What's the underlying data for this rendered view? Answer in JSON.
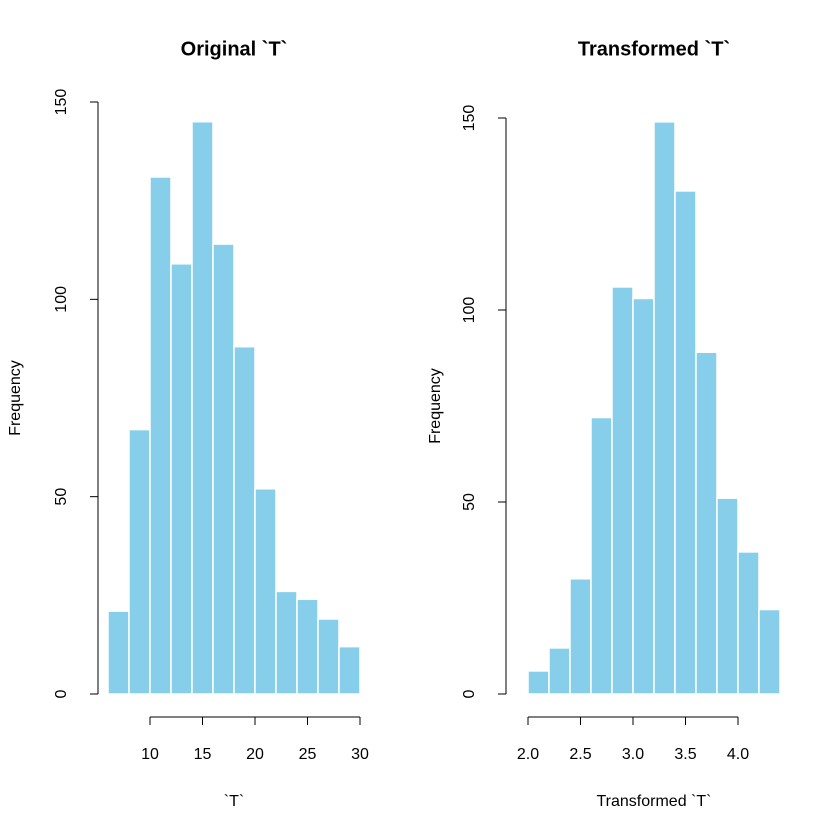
{
  "chart_data": [
    {
      "type": "histogram",
      "title": "Original `T`",
      "xlabel": "`T`",
      "ylabel": "Frequency",
      "bins": [
        6,
        8,
        10,
        12,
        14,
        16,
        18,
        20,
        22,
        24,
        26,
        28,
        30
      ],
      "values": [
        21,
        67,
        131,
        109,
        145,
        114,
        88,
        52,
        26,
        24,
        19,
        12
      ],
      "color": "#87ceeb",
      "xlim": [
        6,
        30
      ],
      "ylim": [
        0,
        150
      ],
      "xticks": [
        10,
        15,
        20,
        25,
        30
      ],
      "yticks": [
        0,
        50,
        100,
        150
      ]
    },
    {
      "type": "histogram",
      "title": "Transformed `T`",
      "xlabel": "Transformed `T`",
      "ylabel": "Frequency",
      "bins": [
        2.0,
        2.2,
        2.4,
        2.6,
        2.8,
        3.0,
        3.2,
        3.4,
        3.6,
        3.8,
        4.0,
        4.2,
        4.4
      ],
      "values": [
        6,
        12,
        30,
        72,
        106,
        103,
        149,
        131,
        89,
        51,
        37,
        22
      ],
      "color": "#87ceeb",
      "xlim": [
        2.0,
        4.4
      ],
      "ylim": [
        0,
        150
      ],
      "xticks": [
        {
          "value": 2.0,
          "label": "2.0"
        },
        {
          "value": 2.5,
          "label": "2.5"
        },
        {
          "value": 3.0,
          "label": "3.0"
        },
        {
          "value": 3.5,
          "label": "3.5"
        },
        {
          "value": 4.0,
          "label": "4.0"
        }
      ],
      "yticks": [
        0,
        50,
        100,
        150
      ]
    }
  ]
}
